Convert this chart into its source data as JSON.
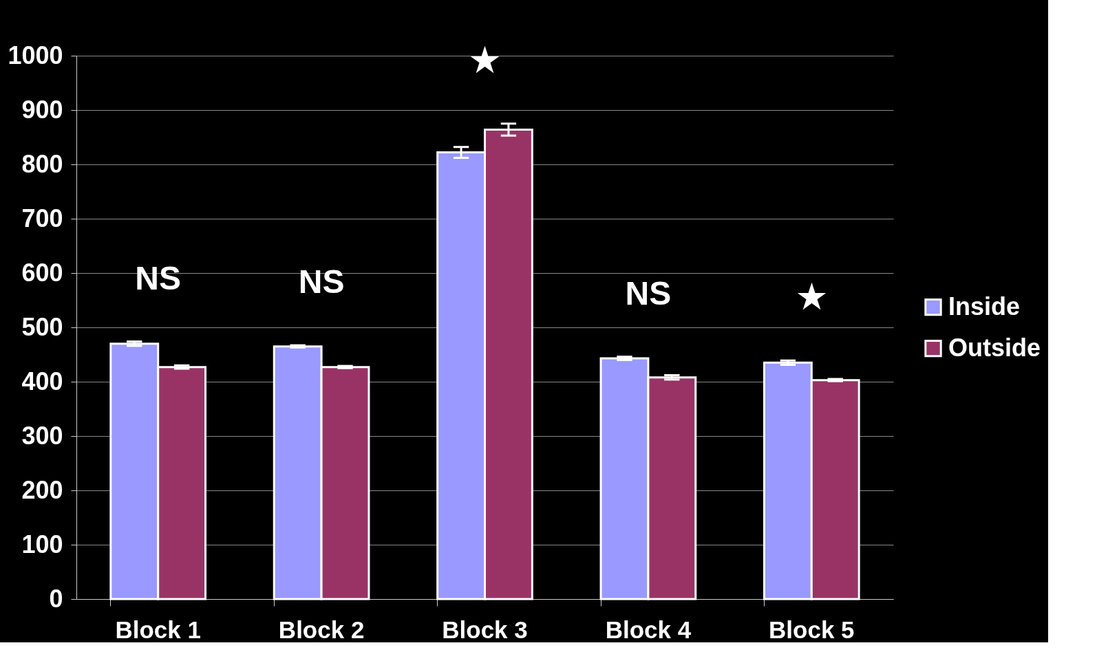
{
  "chart_data": {
    "type": "bar",
    "categories": [
      "Block 1",
      "Block 2",
      "Block 3",
      "Block 4",
      "Block 5"
    ],
    "series": [
      {
        "name": "Inside",
        "color": "#9999ff",
        "values": [
          470,
          465,
          822,
          443,
          435
        ],
        "errors": [
          4,
          2,
          10,
          3,
          4
        ]
      },
      {
        "name": "Outside",
        "color": "#993366",
        "values": [
          427,
          427,
          864,
          408,
          403
        ],
        "errors": [
          3,
          2,
          11,
          4,
          2
        ]
      }
    ],
    "ylim": [
      0,
      1000
    ],
    "yticks": [
      0,
      100,
      200,
      300,
      400,
      500,
      600,
      700,
      800,
      900,
      1000
    ],
    "grid": "y",
    "legend": "right",
    "annotations": [
      "NS",
      "NS",
      "★",
      "NS",
      "★"
    ]
  }
}
